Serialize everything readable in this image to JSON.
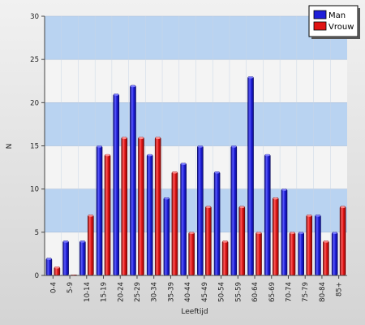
{
  "chart_data": {
    "type": "bar",
    "categories": [
      "0-4",
      "5-9",
      "10-14",
      "15-19",
      "20-24",
      "25-29",
      "30-34",
      "35-39",
      "40-44",
      "45-49",
      "50-54",
      "55-59",
      "60-64",
      "65-69",
      "70-74",
      "75-79",
      "80-84",
      "85+"
    ],
    "series": [
      {
        "name": "Man",
        "color": "#1f1fd8",
        "values": [
          2,
          4,
          4,
          15,
          21,
          22,
          14,
          9,
          13,
          15,
          12,
          15,
          23,
          14,
          10,
          5,
          7,
          5
        ]
      },
      {
        "name": "Vrouw",
        "color": "#e01414",
        "values": [
          1,
          0,
          7,
          14,
          16,
          16,
          16,
          12,
          5,
          8,
          4,
          8,
          5,
          9,
          5,
          7,
          4,
          8
        ]
      }
    ],
    "xlabel": "Leeftijd",
    "ylabel": "N",
    "ylim": [
      0,
      30
    ],
    "yticks": [
      0,
      5,
      10,
      15,
      20,
      25,
      30
    ],
    "band_colors": [
      "#b9d3f1",
      "#f4f4f4"
    ],
    "grid": true,
    "legend": "top-right"
  }
}
